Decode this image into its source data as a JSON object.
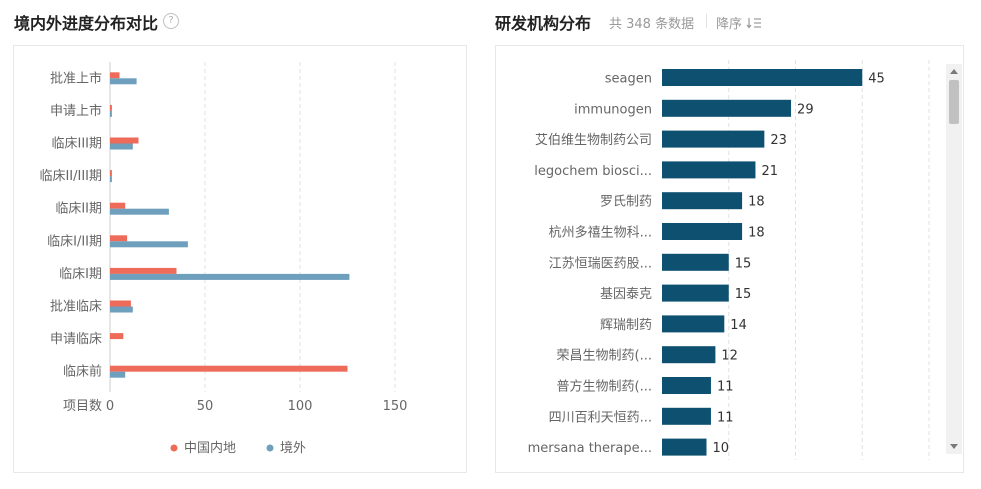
{
  "left_panel": {
    "title": "境内外进度分布对比",
    "help_icon": "question-circle-icon"
  },
  "right_panel": {
    "title": "研发机构分布",
    "total_text": "共 348 条数据",
    "sort_label": "降序",
    "sort_icon": "sort-descending-icon"
  },
  "colors": {
    "domestic": "#ee6b5a",
    "overseas": "#6e9fbd",
    "org_bar": "#0d5070",
    "grid": "#e0e0e0",
    "axis_text": "#666666"
  },
  "chart_data": [
    {
      "type": "bar",
      "orientation": "horizontal",
      "title": "境内外进度分布对比",
      "ylabel": "项目数",
      "xlim": [
        0,
        165
      ],
      "xticks": [
        0,
        50,
        100,
        150
      ],
      "grid": true,
      "legend_position": "bottom-center",
      "categories": [
        "批准上市",
        "申请上市",
        "临床III期",
        "临床II/III期",
        "临床II期",
        "临床I/II期",
        "临床I期",
        "批准临床",
        "申请临床",
        "临床前"
      ],
      "series": [
        {
          "name": "中国内地",
          "color": "#ee6b5a",
          "values": [
            5,
            1,
            15,
            1,
            8,
            9,
            35,
            11,
            7,
            125
          ]
        },
        {
          "name": "境外",
          "color": "#6e9fbd",
          "values": [
            14,
            1,
            12,
            1,
            31,
            41,
            126,
            12,
            0,
            8
          ]
        }
      ]
    },
    {
      "type": "bar",
      "orientation": "horizontal",
      "title": "研发机构分布",
      "categories": [
        "seagen",
        "immunogen",
        "艾伯维生物制药公司",
        "legochem biosci...",
        "罗氏制药",
        "杭州多禧生物科...",
        "江苏恒瑞医药股...",
        "基因泰克",
        "辉瑞制药",
        "荣昌生物制药(...",
        "普方生物制药(...",
        "四川百利天恒药...",
        "mersana therape..."
      ],
      "values": [
        45,
        29,
        23,
        21,
        18,
        18,
        15,
        15,
        14,
        12,
        11,
        11,
        10
      ],
      "xlim": [
        0,
        60
      ],
      "grid": true,
      "data_labels": true
    }
  ]
}
